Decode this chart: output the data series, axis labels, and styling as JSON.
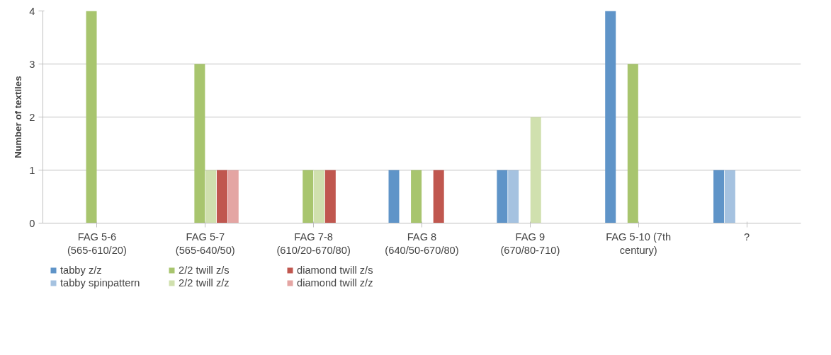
{
  "chart_data": {
    "type": "bar",
    "ylabel": "Number of textiles",
    "categories": [
      "FAG 5-6\n(565-610/20)",
      "FAG 5-7\n(565-640/50)",
      "FAG 7-8\n(610/20-670/80)",
      "FAG 8\n(640/50-670/80)",
      "FAG 9\n(670/80-710)",
      "FAG 5-10 (7th\ncentury)",
      "?"
    ],
    "series": [
      {
        "name": "tabby z/z",
        "color": "#5f94c8",
        "values": [
          0,
          0,
          0,
          1,
          1,
          4,
          1
        ]
      },
      {
        "name": "tabby spinpattern",
        "color": "#a5c2e0",
        "values": [
          0,
          0,
          0,
          0,
          1,
          0,
          1
        ]
      },
      {
        "name": "2/2 twill z/s",
        "color": "#a8c56e",
        "values": [
          4,
          3,
          1,
          1,
          0,
          3,
          0
        ]
      },
      {
        "name": "2/2 twill z/z",
        "color": "#d0e0ae",
        "values": [
          0,
          1,
          1,
          0,
          2,
          0,
          0
        ]
      },
      {
        "name": "diamond twill z/s",
        "color": "#c0574f",
        "values": [
          0,
          1,
          1,
          1,
          0,
          0,
          0
        ]
      },
      {
        "name": "diamond twill z/z",
        "color": "#e4a5a3",
        "values": [
          0,
          1,
          0,
          0,
          0,
          0,
          0
        ]
      }
    ],
    "ylim": [
      0,
      4
    ],
    "yticks": [
      0,
      1,
      2,
      3,
      4
    ],
    "grid": "y",
    "legend": "bottom"
  }
}
